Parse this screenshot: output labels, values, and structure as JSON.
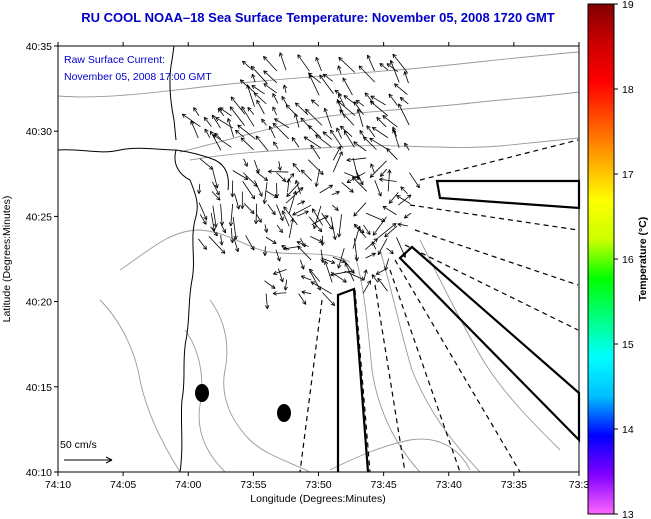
{
  "title": "RU COOL  NOAA–18  Sea Surface Temperature:  November 05, 2008 1720 GMT",
  "annotation": {
    "line1": "Raw Surface Current:",
    "line2": "November 05, 2008 17:00 GMT"
  },
  "x_axis": {
    "label": "Longitude (Degrees:Minutes)",
    "ticks": [
      "74:10",
      "74:05",
      "74:00",
      "73:55",
      "73:50",
      "73:45",
      "73:40",
      "73:35",
      "73:3"
    ]
  },
  "y_axis": {
    "label": "Latitude (Degrees:Minutes)",
    "ticks": [
      "40:35",
      "40:30",
      "40:25",
      "40:20",
      "40:15",
      "40:10"
    ]
  },
  "scale_arrow": {
    "label": "50 cm/s"
  },
  "colorbar": {
    "label": "Temperature (°C)",
    "ticks": [
      "19",
      "18",
      "17",
      "16",
      "15",
      "14",
      "13"
    ],
    "min": 13,
    "max": 19,
    "colors": [
      "#ff66ff",
      "#8000ff",
      "#0000ff",
      "#00c0ff",
      "#00ffff",
      "#00ff80",
      "#00ff00",
      "#ccff00",
      "#ffff00",
      "#ffaa00",
      "#ff5500",
      "#ff0000",
      "#cc0000",
      "#800000"
    ]
  },
  "colors": {
    "title": "#0000cc",
    "coast": "#000000",
    "bathymetry": "#999999"
  }
}
